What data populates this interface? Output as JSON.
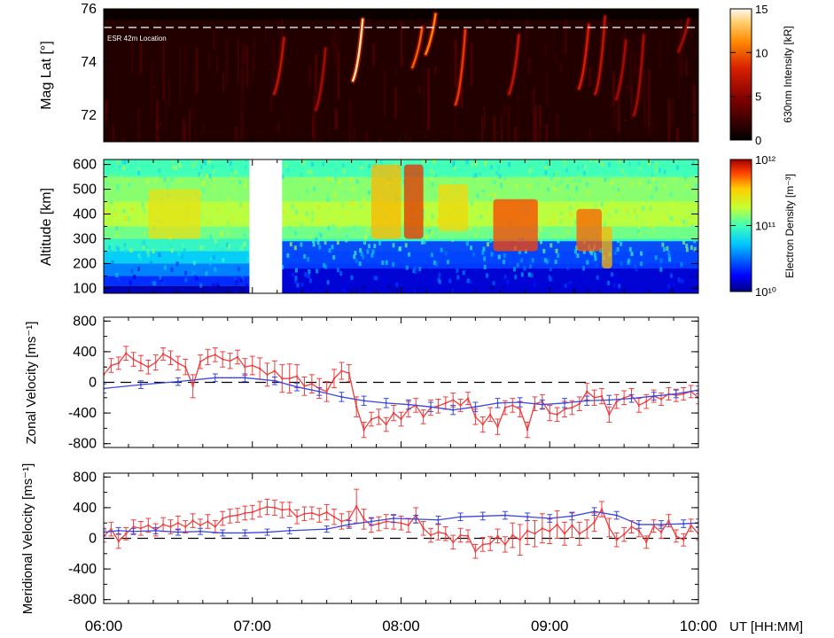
{
  "figure": {
    "xaxis_label": "UT [HH:MM]",
    "xticks": [
      "06:00",
      "07:00",
      "08:00",
      "09:00",
      "10:00"
    ]
  },
  "chart_data": [
    {
      "type": "heatmap",
      "ylabel": "Mag Lat [°]",
      "ylim": [
        71,
        76
      ],
      "yticks": [
        72,
        74,
        76
      ],
      "xlim_hours": [
        6,
        10
      ],
      "annotation": "ESR 42m Location",
      "reference_line_mlat": 75.3,
      "colorbar": {
        "label": "630nm Intensity [kR]",
        "ticks": [
          0,
          5,
          10,
          15
        ],
        "range": [
          0,
          15
        ]
      },
      "bright_arcs": [
        {
          "t": 7.2,
          "lat_top": 74.9,
          "lat_bot": 72.8,
          "intensity": 7
        },
        {
          "t": 7.48,
          "lat_top": 74.5,
          "lat_bot": 72.2,
          "intensity": 6
        },
        {
          "t": 7.73,
          "lat_top": 75.6,
          "lat_bot": 73.3,
          "intensity": 14
        },
        {
          "t": 8.13,
          "lat_top": 75.3,
          "lat_bot": 73.8,
          "intensity": 10
        },
        {
          "t": 8.22,
          "lat_top": 75.8,
          "lat_bot": 74.3,
          "intensity": 11
        },
        {
          "t": 8.42,
          "lat_top": 75.2,
          "lat_bot": 72.4,
          "intensity": 9
        },
        {
          "t": 8.78,
          "lat_top": 75.0,
          "lat_bot": 72.8,
          "intensity": 7
        },
        {
          "t": 9.25,
          "lat_top": 75.4,
          "lat_bot": 73.0,
          "intensity": 8
        },
        {
          "t": 9.36,
          "lat_top": 75.7,
          "lat_bot": 72.8,
          "intensity": 7
        },
        {
          "t": 9.5,
          "lat_top": 74.8,
          "lat_bot": 72.6,
          "intensity": 6
        },
        {
          "t": 9.62,
          "lat_top": 75.0,
          "lat_bot": 72.0,
          "intensity": 6
        },
        {
          "t": 9.92,
          "lat_top": 75.6,
          "lat_bot": 74.4,
          "intensity": 6
        }
      ]
    },
    {
      "type": "heatmap",
      "ylabel": "Altitude [km]",
      "ylim": [
        80,
        620
      ],
      "yticks": [
        100,
        200,
        300,
        400,
        500,
        600
      ],
      "xlim_hours": [
        6,
        10
      ],
      "data_gap_hours": [
        6.98,
        7.2
      ],
      "colorbar": {
        "label": "Electron Density [m⁻³]",
        "ticks": [
          "10¹⁰",
          "10¹¹",
          "10¹²"
        ],
        "log_range": [
          10,
          12
        ]
      },
      "enhancements": [
        {
          "t0": 6.3,
          "t1": 6.65,
          "alt0": 300,
          "alt1": 500,
          "log_ne": 11.45
        },
        {
          "t0": 7.8,
          "t1": 8.0,
          "alt0": 300,
          "alt1": 600,
          "log_ne": 11.6
        },
        {
          "t0": 8.02,
          "t1": 8.15,
          "alt0": 300,
          "alt1": 600,
          "log_ne": 11.85
        },
        {
          "t0": 8.25,
          "t1": 8.45,
          "alt0": 330,
          "alt1": 520,
          "log_ne": 11.5
        },
        {
          "t0": 8.62,
          "t1": 8.92,
          "alt0": 250,
          "alt1": 460,
          "log_ne": 11.8
        },
        {
          "t0": 9.18,
          "t1": 9.35,
          "alt0": 250,
          "alt1": 420,
          "log_ne": 11.75
        },
        {
          "t0": 9.35,
          "t1": 9.42,
          "alt0": 180,
          "alt1": 350,
          "log_ne": 11.6
        }
      ]
    },
    {
      "type": "line",
      "ylabel": "Zonal Velocity [ms⁻¹]",
      "ylim": [
        -850,
        850
      ],
      "yticks": [
        -800,
        -400,
        0,
        400,
        800
      ],
      "reference_line": 0,
      "series": [
        {
          "color": "#f03c3c",
          "x": [
            6.0,
            6.05,
            6.1,
            6.15,
            6.2,
            6.25,
            6.3,
            6.35,
            6.4,
            6.45,
            6.5,
            6.55,
            6.6,
            6.65,
            6.7,
            6.75,
            6.8,
            6.85,
            6.9,
            6.95,
            7.0,
            7.05,
            7.1,
            7.15,
            7.2,
            7.25,
            7.3,
            7.35,
            7.4,
            7.45,
            7.5,
            7.55,
            7.6,
            7.65,
            7.7,
            7.75,
            7.8,
            7.85,
            7.9,
            7.95,
            8.0,
            8.05,
            8.1,
            8.15,
            8.2,
            8.25,
            8.3,
            8.35,
            8.4,
            8.45,
            8.5,
            8.55,
            8.6,
            8.65,
            8.7,
            8.75,
            8.8,
            8.85,
            8.9,
            8.95,
            9.0,
            9.05,
            9.1,
            9.15,
            9.2,
            9.25,
            9.3,
            9.35,
            9.4,
            9.45,
            9.5,
            9.55,
            9.6,
            9.65,
            9.7,
            9.75,
            9.8,
            9.85,
            9.9,
            9.95,
            10.0
          ],
          "values": [
            100,
            220,
            250,
            380,
            300,
            250,
            200,
            260,
            370,
            320,
            250,
            200,
            -50,
            270,
            330,
            360,
            300,
            280,
            330,
            200,
            220,
            180,
            100,
            150,
            50,
            50,
            80,
            -50,
            -20,
            -80,
            -120,
            50,
            150,
            120,
            -320,
            -620,
            -480,
            -450,
            -550,
            -400,
            -480,
            -350,
            -300,
            -450,
            -330,
            -310,
            -270,
            -230,
            -300,
            -210,
            -450,
            -550,
            -420,
            -580,
            -330,
            -300,
            -350,
            -620,
            -280,
            -250,
            -400,
            -420,
            -350,
            -330,
            -280,
            -120,
            -200,
            -180,
            -420,
            -250,
            -200,
            -170,
            -300,
            -250,
            -180,
            -220,
            -150,
            -170,
            -150,
            -120,
            -200
          ],
          "errors": [
            100,
            90,
            80,
            90,
            90,
            100,
            90,
            100,
            80,
            90,
            90,
            100,
            150,
            90,
            100,
            90,
            100,
            100,
            90,
            110,
            120,
            140,
            150,
            130,
            180,
            190,
            150,
            120,
            120,
            130,
            130,
            120,
            110,
            110,
            130,
            100,
            90,
            100,
            90,
            100,
            90,
            100,
            90,
            90,
            100,
            90,
            80,
            90,
            80,
            80,
            100,
            100,
            90,
            100,
            90,
            90,
            100,
            100,
            90,
            90,
            100,
            90,
            100,
            90,
            90,
            110,
            100,
            100,
            100,
            90,
            90,
            90,
            90,
            90,
            80,
            80,
            80,
            80,
            80,
            80,
            80
          ]
        },
        {
          "color": "#3a46e0",
          "x": [
            6.0,
            6.25,
            6.5,
            6.75,
            6.95,
            7.15,
            7.3,
            7.45,
            7.6,
            7.75,
            7.9,
            8.05,
            8.2,
            8.35,
            8.5,
            8.65,
            8.8,
            8.95,
            9.1,
            9.25,
            9.4,
            9.55,
            9.7,
            9.85,
            10.0
          ],
          "values": [
            -80,
            -30,
            10,
            60,
            60,
            20,
            -60,
            -120,
            -190,
            -240,
            -270,
            -290,
            -320,
            -360,
            -320,
            -270,
            -260,
            -290,
            -270,
            -240,
            -230,
            -210,
            -180,
            -150,
            -100
          ],
          "errors": [
            60,
            50,
            50,
            50,
            50,
            50,
            50,
            50,
            60,
            60,
            60,
            60,
            60,
            60,
            60,
            60,
            60,
            60,
            60,
            60,
            60,
            50,
            50,
            50,
            50
          ]
        }
      ]
    },
    {
      "type": "line",
      "ylabel": "Meridional Velocity [ms⁻¹]",
      "ylim": [
        -850,
        850
      ],
      "yticks": [
        -800,
        -400,
        0,
        400,
        800
      ],
      "reference_line": 0,
      "series": [
        {
          "color": "#f03c3c",
          "x": [
            6.0,
            6.05,
            6.1,
            6.15,
            6.2,
            6.25,
            6.3,
            6.35,
            6.4,
            6.45,
            6.5,
            6.55,
            6.6,
            6.65,
            6.7,
            6.75,
            6.8,
            6.85,
            6.9,
            6.95,
            7.0,
            7.05,
            7.1,
            7.15,
            7.2,
            7.25,
            7.3,
            7.35,
            7.4,
            7.45,
            7.5,
            7.55,
            7.6,
            7.65,
            7.7,
            7.75,
            7.8,
            7.85,
            7.9,
            7.95,
            8.0,
            8.05,
            8.1,
            8.15,
            8.2,
            8.25,
            8.3,
            8.35,
            8.4,
            8.45,
            8.5,
            8.55,
            8.6,
            8.65,
            8.7,
            8.75,
            8.8,
            8.85,
            8.9,
            8.95,
            9.0,
            9.05,
            9.1,
            9.15,
            9.2,
            9.25,
            9.3,
            9.35,
            9.4,
            9.45,
            9.5,
            9.55,
            9.6,
            9.65,
            9.7,
            9.75,
            9.8,
            9.85,
            9.9,
            9.95,
            10.0
          ],
          "values": [
            30,
            120,
            -40,
            60,
            150,
            130,
            170,
            110,
            180,
            150,
            200,
            150,
            230,
            170,
            220,
            150,
            260,
            290,
            300,
            330,
            340,
            380,
            410,
            400,
            370,
            380,
            280,
            320,
            330,
            300,
            340,
            280,
            220,
            250,
            420,
            250,
            170,
            190,
            220,
            210,
            200,
            170,
            300,
            130,
            40,
            80,
            60,
            -50,
            40,
            30,
            -170,
            -80,
            -70,
            30,
            -80,
            40,
            -20,
            100,
            60,
            130,
            90,
            180,
            60,
            170,
            60,
            120,
            210,
            380,
            140,
            -20,
            50,
            150,
            100,
            -50,
            160,
            80,
            230,
            30,
            -20,
            170,
            60
          ],
          "errors": [
            80,
            90,
            90,
            80,
            90,
            90,
            90,
            80,
            90,
            90,
            90,
            80,
            90,
            80,
            90,
            80,
            90,
            90,
            90,
            90,
            90,
            100,
            100,
            100,
            100,
            90,
            90,
            90,
            80,
            90,
            100,
            100,
            100,
            100,
            220,
            130,
            90,
            90,
            90,
            90,
            90,
            90,
            100,
            90,
            90,
            100,
            90,
            90,
            90,
            80,
            90,
            90,
            90,
            90,
            100,
            160,
            200,
            180,
            170,
            190,
            160,
            180,
            150,
            160,
            150,
            120,
            120,
            100,
            120,
            90,
            90,
            80,
            80,
            80,
            80,
            80,
            80,
            80,
            80,
            80,
            80
          ]
        },
        {
          "color": "#3a46e0",
          "x": [
            6.0,
            6.1,
            6.2,
            6.35,
            6.5,
            6.65,
            6.8,
            6.95,
            7.1,
            7.25,
            7.5,
            7.65,
            7.8,
            7.95,
            8.1,
            8.25,
            8.4,
            8.55,
            8.7,
            8.85,
            9.0,
            9.15,
            9.3,
            9.45,
            9.6,
            9.75,
            9.9,
            10.0
          ],
          "values": [
            80,
            100,
            90,
            100,
            80,
            90,
            70,
            70,
            80,
            100,
            120,
            180,
            220,
            260,
            250,
            240,
            280,
            290,
            300,
            280,
            260,
            290,
            350,
            300,
            180,
            180,
            190,
            200
          ],
          "errors": [
            50,
            40,
            40,
            40,
            40,
            40,
            40,
            40,
            40,
            40,
            40,
            50,
            50,
            50,
            50,
            50,
            50,
            50,
            50,
            50,
            50,
            50,
            50,
            50,
            50,
            50,
            50,
            50
          ]
        }
      ]
    }
  ]
}
